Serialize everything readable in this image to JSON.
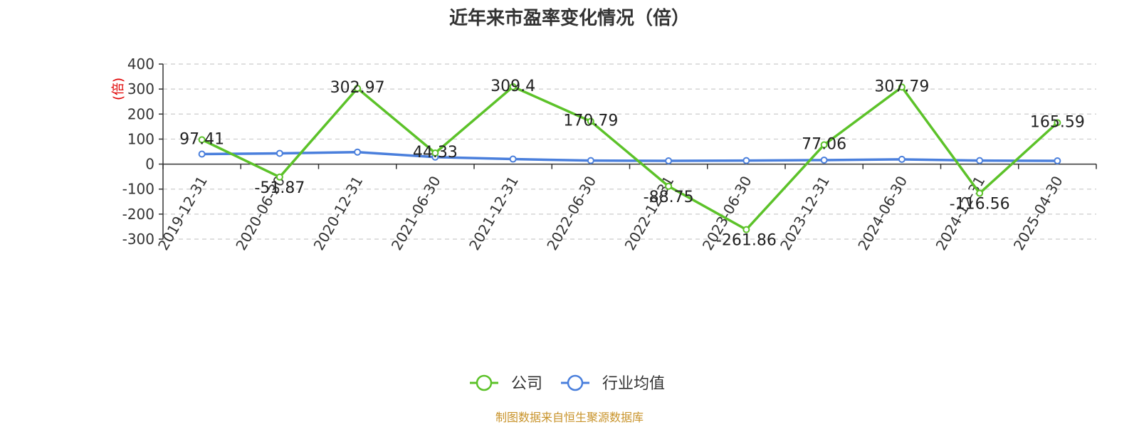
{
  "chart_data": {
    "type": "line",
    "title": "近年来市盈率变化情况（倍）",
    "ylabel": "(倍)",
    "xlabel": "",
    "categories": [
      "2019-12-31",
      "2020-06-30",
      "2020-12-31",
      "2021-06-30",
      "2021-12-31",
      "2022-06-30",
      "2022-12-31",
      "2023-06-30",
      "2023-12-31",
      "2024-06-30",
      "2024-12-31",
      "2025-04-30"
    ],
    "ylim": [
      -300,
      400
    ],
    "yticks": [
      400,
      300,
      200,
      100,
      0,
      -100,
      -200,
      -300
    ],
    "yticks_labels": [
      "400",
      "300",
      "200",
      "100",
      "0",
      "-100",
      "-200",
      "-300"
    ],
    "grid": true,
    "legend_position": "bottom-center",
    "series": [
      {
        "name": "公司",
        "color": "#5cc229",
        "values": [
          97.41,
          -51.87,
          302.97,
          44.33,
          309.4,
          170.79,
          -88.75,
          -261.86,
          77.06,
          307.79,
          -116.56,
          165.59
        ],
        "labels": [
          "97.41",
          "-51.87",
          "302.97",
          "44.33",
          "309.4",
          "170.79",
          "-88.75",
          "-261.86",
          "77.06",
          "307.79",
          "-116.56",
          "165.59"
        ]
      },
      {
        "name": "行业均值",
        "color": "#4a7fdc",
        "values": [
          40,
          43,
          48,
          28,
          20,
          14,
          13,
          14,
          16,
          19,
          14,
          13
        ]
      }
    ]
  },
  "source_note": "制图数据来自恒生聚源数据库"
}
